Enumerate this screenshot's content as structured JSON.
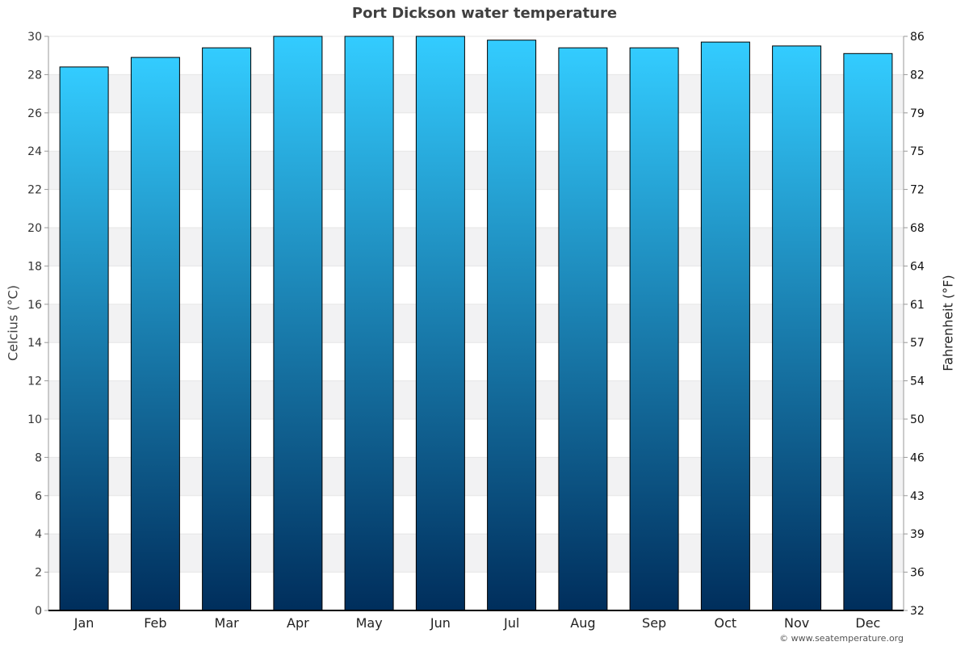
{
  "chart_data": {
    "type": "bar",
    "title": "Port Dickson water temperature",
    "ylabel": "Celcius (°C)",
    "y2label": "Fahrenheit (°F)",
    "categories": [
      "Jan",
      "Feb",
      "Mar",
      "Apr",
      "May",
      "Jun",
      "Jul",
      "Aug",
      "Sep",
      "Oct",
      "Nov",
      "Dec"
    ],
    "values": [
      28.4,
      28.9,
      29.4,
      30,
      30,
      30,
      29.8,
      29.4,
      29.4,
      29.7,
      29.5,
      29.1
    ],
    "ylim": [
      0,
      30
    ],
    "yticks": [
      "0",
      "2",
      "4",
      "6",
      "8",
      "10",
      "12",
      "14",
      "16",
      "18",
      "20",
      "22",
      "24",
      "26",
      "28",
      "30"
    ],
    "y2ticks": [
      "32",
      "36",
      "39",
      "43",
      "46",
      "50",
      "54",
      "57",
      "61",
      "64",
      "68",
      "72",
      "75",
      "79",
      "82",
      "86"
    ],
    "grid": true,
    "legend": "none",
    "colors": {
      "bar_top": "#33ccff",
      "bar_bottom": "#002e5c",
      "band": "#f2f2f3",
      "axis": "#000000"
    }
  },
  "credit": "© www.seatemperature.org"
}
